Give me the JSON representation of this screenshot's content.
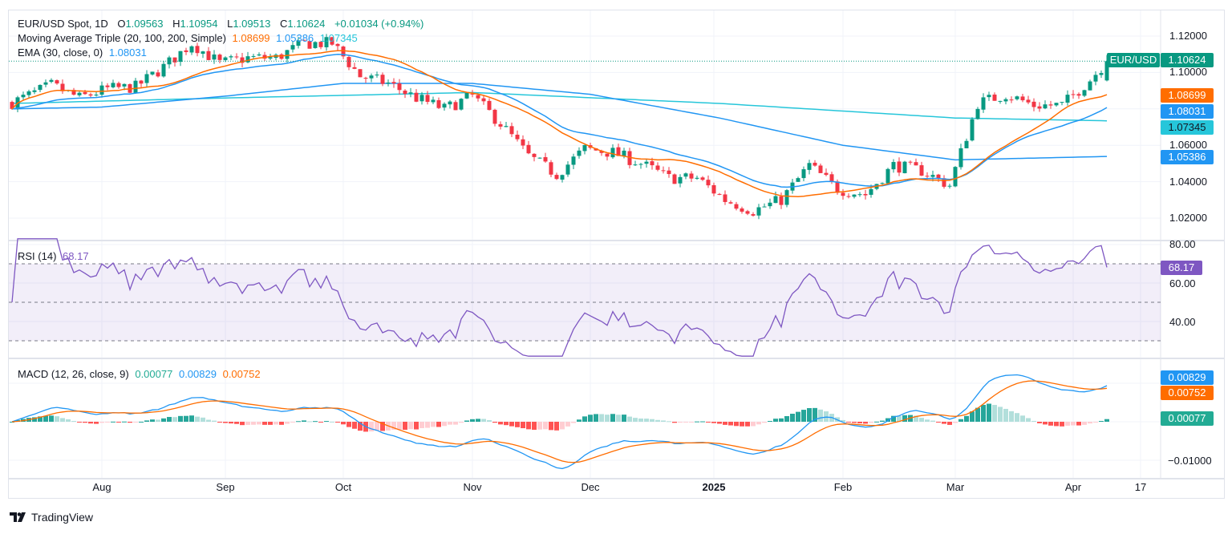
{
  "header": {
    "symbol": "EUR/USD Spot, 1D",
    "o_label": "O",
    "o": "1.09563",
    "h_label": "H",
    "h": "1.10954",
    "l_label": "L",
    "l": "1.09513",
    "c_label": "C",
    "c": "1.10624",
    "change": "+0.01034 (+0.94%)"
  },
  "ma_legend": {
    "title": "Moving Average Triple (20, 100, 200, Simple)",
    "ma20": "1.08699",
    "ma100": "1.05386",
    "ma200": "1.07345"
  },
  "ema_legend": {
    "title": "EMA (30, close, 0)",
    "value": "1.08031"
  },
  "rsi_legend": {
    "title": "RSI (14)",
    "value": "68.17"
  },
  "macd_legend": {
    "title": "MACD (12, 26, close, 9)",
    "hist": "0.00077",
    "macd": "0.00829",
    "signal": "0.00752"
  },
  "price_axis": [
    "1.12000",
    "1.10000",
    "1.06000",
    "1.04000",
    "1.02000"
  ],
  "rsi_axis": [
    "80.00",
    "60.00",
    "40.00"
  ],
  "macd_axis": [
    "−0.01000"
  ],
  "time_axis": [
    {
      "label": "Aug",
      "date": "2024-08-01"
    },
    {
      "label": "Sep",
      "date": "2024-09-02"
    },
    {
      "label": "Oct",
      "date": "2024-10-01"
    },
    {
      "label": "Nov",
      "date": "2024-11-01"
    },
    {
      "label": "Dec",
      "date": "2024-12-02"
    },
    {
      "label": "2025",
      "date": "2025-01-01"
    },
    {
      "label": "Feb",
      "date": "2025-02-03"
    },
    {
      "label": "Mar",
      "date": "2025-03-03"
    },
    {
      "label": "Apr",
      "date": "2025-04-01"
    },
    {
      "label": "17",
      "date": "2025-04-17"
    }
  ],
  "tags": {
    "symbol": "EUR/USD",
    "last": "1.10624",
    "ma20": "1.08699",
    "ema30": "1.08031",
    "ma200": "1.07345",
    "ma100": "1.05386",
    "rsi": "68.17",
    "macd": "0.00829",
    "signal": "0.00752",
    "hist": "0.00077"
  },
  "brand": "TradingView",
  "colors": {
    "up": "#089981",
    "down": "#f23645",
    "ma20": "#ff6d00",
    "ma100": "#2196f3",
    "ma200": "#26c6da",
    "ema30": "#2196f3",
    "rsi": "#7e57c2",
    "macd": "#2196f3",
    "signal": "#ff6d00"
  },
  "chart_data": {
    "type": "candlestick",
    "title": "EUR/USD Spot, 1D",
    "ylim": [
      1.015,
      1.125
    ],
    "last_bar": {
      "date": "2025-04-09",
      "open": 1.09563,
      "high": 1.10954,
      "low": 1.09513,
      "close": 1.10624
    },
    "weekly_close": [
      [
        "2024-07-10",
        1.0835
      ],
      [
        "2024-07-12",
        1.086
      ],
      [
        "2024-07-19",
        1.093
      ],
      [
        "2024-07-26",
        1.086
      ],
      [
        "2024-08-02",
        1.091
      ],
      [
        "2024-08-09",
        1.092
      ],
      [
        "2024-08-16",
        1.103
      ],
      [
        "2024-08-23",
        1.116
      ],
      [
        "2024-08-30",
        1.105
      ],
      [
        "2024-09-06",
        1.108
      ],
      [
        "2024-09-13",
        1.108
      ],
      [
        "2024-09-20",
        1.116
      ],
      [
        "2024-09-27",
        1.116
      ],
      [
        "2024-10-04",
        1.098
      ],
      [
        "2024-10-11",
        1.094
      ],
      [
        "2024-10-18",
        1.086
      ],
      [
        "2024-10-25",
        1.08
      ],
      [
        "2024-11-01",
        1.087
      ],
      [
        "2024-11-08",
        1.072
      ],
      [
        "2024-11-15",
        1.054
      ],
      [
        "2024-11-22",
        1.044
      ],
      [
        "2024-11-29",
        1.058
      ],
      [
        "2024-12-06",
        1.056
      ],
      [
        "2024-12-13",
        1.05
      ],
      [
        "2024-12-20",
        1.042
      ],
      [
        "2024-12-27",
        1.042
      ],
      [
        "2025-01-03",
        1.03
      ],
      [
        "2025-01-10",
        1.024
      ],
      [
        "2025-01-17",
        1.03
      ],
      [
        "2025-01-24",
        1.049
      ],
      [
        "2025-01-31",
        1.036
      ],
      [
        "2025-02-07",
        1.033
      ],
      [
        "2025-02-14",
        1.049
      ],
      [
        "2025-02-21",
        1.046
      ],
      [
        "2025-02-28",
        1.038
      ],
      [
        "2025-03-07",
        1.083
      ],
      [
        "2025-03-14",
        1.088
      ],
      [
        "2025-03-21",
        1.082
      ],
      [
        "2025-03-28",
        1.082
      ],
      [
        "2025-04-04",
        1.096
      ],
      [
        "2025-04-09",
        1.10624
      ]
    ],
    "sma100": [
      [
        "2024-07-10",
        1.08
      ],
      [
        "2024-08-01",
        1.081
      ],
      [
        "2024-09-02",
        1.087
      ],
      [
        "2024-10-01",
        1.094
      ],
      [
        "2024-11-01",
        1.094
      ],
      [
        "2024-12-02",
        1.088
      ],
      [
        "2025-01-02",
        1.075
      ],
      [
        "2025-02-03",
        1.06
      ],
      [
        "2025-03-03",
        1.052
      ],
      [
        "2025-04-09",
        1.05386
      ]
    ],
    "sma200": [
      [
        "2024-07-10",
        1.083
      ],
      [
        "2024-09-02",
        1.086
      ],
      [
        "2024-11-01",
        1.089
      ],
      [
        "2025-01-02",
        1.083
      ],
      [
        "2025-03-03",
        1.075
      ],
      [
        "2025-04-09",
        1.07345
      ]
    ],
    "rsi": {
      "period": 14,
      "levels": [
        70,
        50,
        30
      ],
      "ylim": [
        20,
        85
      ]
    },
    "macd": {
      "fast": 12,
      "slow": 26,
      "signal": 9
    }
  }
}
